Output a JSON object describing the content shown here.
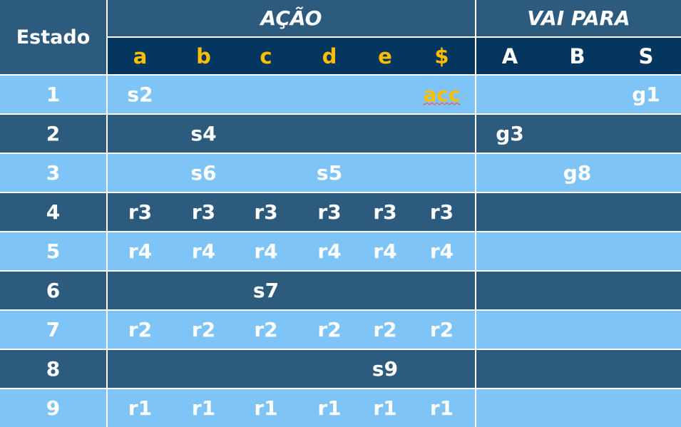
{
  "header": {
    "state_label": "Estado",
    "action_group": "AÇÃO",
    "goto_group": "VAI PARA",
    "action_columns": [
      "a",
      "b",
      "c",
      "d",
      "e",
      "$"
    ],
    "goto_columns": [
      "A",
      "B",
      "S"
    ]
  },
  "rows": [
    {
      "state": "1",
      "action": [
        "s2",
        "",
        "",
        "",
        "",
        "acc"
      ],
      "goto": [
        "",
        "",
        "g1"
      ]
    },
    {
      "state": "2",
      "action": [
        "",
        "s4",
        "",
        "",
        "",
        ""
      ],
      "goto": [
        "g3",
        "",
        ""
      ]
    },
    {
      "state": "3",
      "action": [
        "",
        "s6",
        "",
        "s5",
        "",
        ""
      ],
      "goto": [
        "",
        "g8",
        ""
      ]
    },
    {
      "state": "4",
      "action": [
        "r3",
        "r3",
        "r3",
        "r3",
        "r3",
        "r3"
      ],
      "goto": [
        "",
        "",
        ""
      ]
    },
    {
      "state": "5",
      "action": [
        "r4",
        "r4",
        "r4",
        "r4",
        "r4",
        "r4"
      ],
      "goto": [
        "",
        "",
        ""
      ]
    },
    {
      "state": "6",
      "action": [
        "",
        "",
        "s7",
        "",
        "",
        ""
      ],
      "goto": [
        "",
        "",
        ""
      ]
    },
    {
      "state": "7",
      "action": [
        "r2",
        "r2",
        "r2",
        "r2",
        "r2",
        "r2"
      ],
      "goto": [
        "",
        "",
        ""
      ]
    },
    {
      "state": "8",
      "action": [
        "",
        "",
        "",
        "",
        "s9",
        ""
      ],
      "goto": [
        "",
        "",
        ""
      ]
    },
    {
      "state": "9",
      "action": [
        "r1",
        "r1",
        "r1",
        "r1",
        "r1",
        "r1"
      ],
      "goto": [
        "",
        "",
        ""
      ]
    }
  ],
  "colors": {
    "header_dark": "#04365f",
    "row_dark": "#2c5b7e",
    "row_light": "#7ec4f7",
    "accent_yellow": "#ffbf00"
  }
}
